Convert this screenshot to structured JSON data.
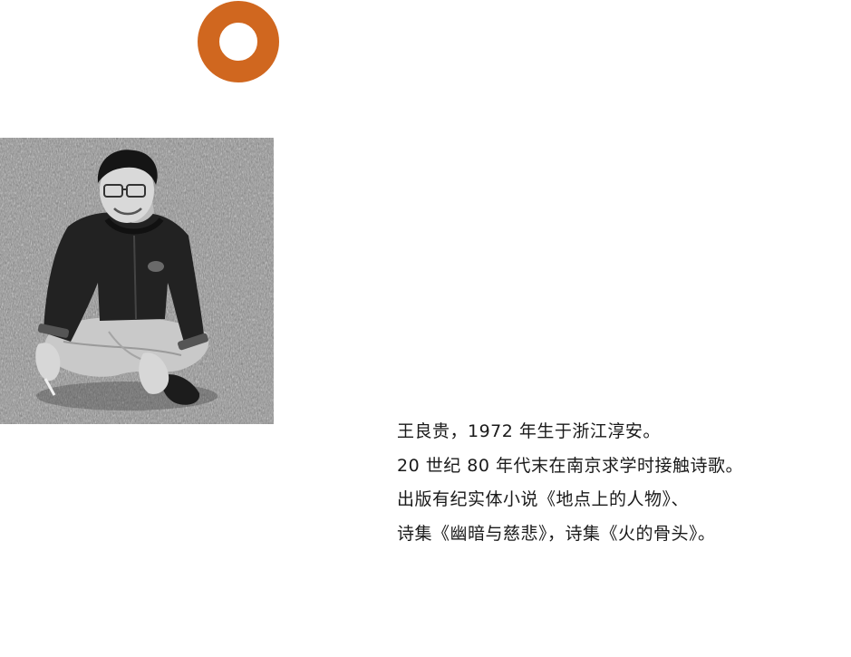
{
  "colors": {
    "ring": "#d0671f",
    "text": "#1a1a1a",
    "background": "#ffffff"
  },
  "logo": {
    "icon": "orange-ring-icon"
  },
  "portrait": {
    "icon": "portrait-photo-icon"
  },
  "bio": {
    "lines": [
      "王良贵，1972 年生于浙江淳安。",
      "20 世纪 80 年代末在南京求学时接触诗歌。",
      "出版有纪实体小说《地点上的人物》、",
      "诗集《幽暗与慈悲》，诗集《火的骨头》。"
    ]
  }
}
